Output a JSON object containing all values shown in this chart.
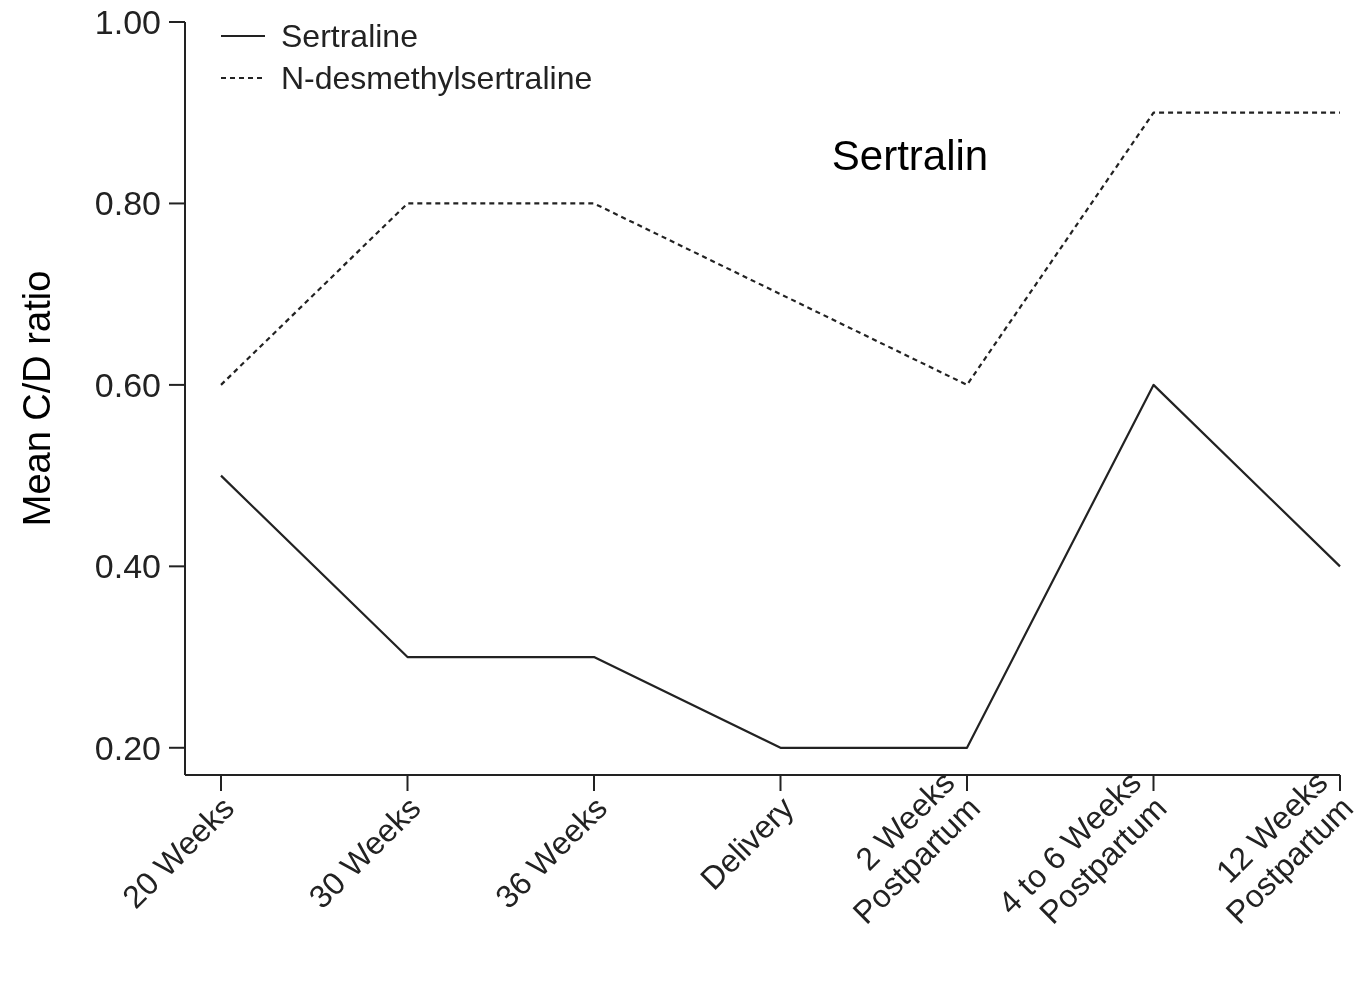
{
  "chart_data": {
    "type": "line",
    "ylabel": "Mean C/D ratio",
    "annotations": [
      "Sertralin"
    ],
    "categories": [
      "20 Weeks",
      "30 Weeks",
      "36 Weeks",
      "Delivery",
      "2 Weeks\nPostpartum",
      "4 to 6 Weeks\nPostpartum",
      "12 Weeks\nPostpartum"
    ],
    "series": [
      {
        "name": "Sertraline",
        "color": "#222222",
        "line_style": "solid",
        "values": [
          0.5,
          0.3,
          0.3,
          0.2,
          0.2,
          0.6,
          0.4
        ]
      },
      {
        "name": "N-desmethylsertraline",
        "color": "#222222",
        "line_style": "dotted",
        "values": [
          0.6,
          0.8,
          0.8,
          0.7,
          0.6,
          0.9,
          0.9
        ]
      }
    ],
    "ylim": [
      0.17,
      1.0
    ],
    "yticks": [
      {
        "value": 0.2,
        "label": "0.20"
      },
      {
        "value": 0.4,
        "label": "0.40"
      },
      {
        "value": 0.6,
        "label": "0.60"
      },
      {
        "value": 0.8,
        "label": "0.80"
      },
      {
        "value": 1.0,
        "label": "1.00"
      }
    ],
    "legend": "top left",
    "grid": false,
    "marker": "none"
  }
}
